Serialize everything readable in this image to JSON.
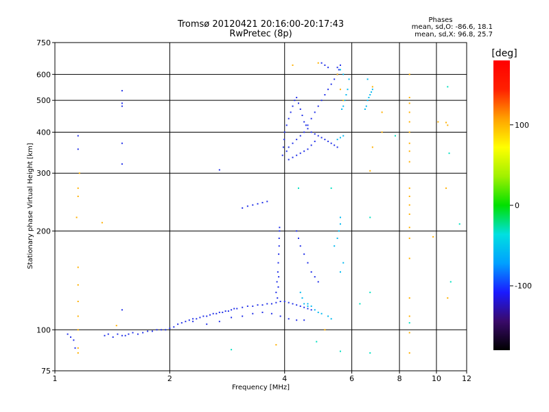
{
  "chart_data": {
    "type": "scatter",
    "title": "Tromsø 20120421 20:16:00-20:17:43",
    "subtitle": "RwPretec (8p)",
    "phases_box": {
      "heading": "Phases",
      "line1": "mean, sd,O: -86.6, 18.1",
      "line2": "mean, sd,X:  96.8, 25.7"
    },
    "xlabel": "Frequency [MHz]",
    "ylabel": "Stationary phase Virtual Height [km]",
    "x_scale": "log",
    "y_scale": "log",
    "xlim": [
      1,
      12
    ],
    "ylim": [
      75,
      750
    ],
    "x_ticks": [
      1,
      2,
      4,
      6,
      8,
      10,
      12
    ],
    "x_tick_labels": [
      "1",
      "2",
      "4",
      "6",
      "8",
      "10",
      "12"
    ],
    "y_ticks": [
      75,
      100,
      200,
      300,
      400,
      500,
      600,
      750
    ],
    "y_tick_labels": [
      "75",
      "100",
      "200",
      "300",
      "400",
      "500",
      "600",
      "750"
    ],
    "grid": true,
    "colorbar": {
      "label": "[deg]",
      "range": [
        -180,
        180
      ],
      "ticks": [
        -100,
        0,
        100
      ],
      "tick_labels": [
        "-100",
        "0",
        "100"
      ],
      "colors": [
        "#000000",
        "#3a0a6a",
        "#1a1aff",
        "#00a0ff",
        "#00e0e0",
        "#00e000",
        "#a0f000",
        "#ffff00",
        "#ffa000",
        "#ff2000",
        "#ff0000"
      ]
    },
    "series": [
      {
        "points": [
          [
            1.08,
            97
          ],
          [
            1.1,
            95
          ],
          [
            1.12,
            93
          ],
          [
            1.13,
            88
          ],
          [
            1.35,
            96
          ],
          [
            1.38,
            97
          ],
          [
            1.42,
            95
          ],
          [
            1.46,
            97
          ],
          [
            1.5,
            96
          ],
          [
            1.53,
            96
          ],
          [
            1.56,
            97
          ],
          [
            1.6,
            98
          ],
          [
            1.65,
            97
          ],
          [
            1.7,
            98
          ],
          [
            1.75,
            99
          ],
          [
            1.8,
            99
          ],
          [
            1.85,
            100
          ],
          [
            1.9,
            100
          ],
          [
            1.95,
            100
          ],
          [
            2.0,
            101
          ],
          [
            2.05,
            102
          ],
          [
            2.1,
            104
          ],
          [
            2.15,
            105
          ],
          [
            2.2,
            106
          ],
          [
            2.25,
            107
          ],
          [
            2.3,
            108
          ],
          [
            2.35,
            108
          ],
          [
            2.4,
            109
          ],
          [
            2.45,
            110
          ],
          [
            2.5,
            110
          ],
          [
            2.55,
            111
          ],
          [
            2.6,
            112
          ],
          [
            2.65,
            112
          ],
          [
            2.7,
            113
          ],
          [
            2.75,
            113
          ],
          [
            2.8,
            114
          ],
          [
            2.85,
            114
          ],
          [
            2.9,
            115
          ],
          [
            2.95,
            116
          ],
          [
            3.0,
            116
          ],
          [
            3.1,
            117
          ],
          [
            3.2,
            118
          ],
          [
            3.3,
            118
          ],
          [
            3.4,
            119
          ],
          [
            3.5,
            119
          ],
          [
            3.6,
            120
          ],
          [
            3.7,
            120
          ],
          [
            3.8,
            121
          ],
          [
            3.9,
            122
          ],
          [
            4.0,
            122
          ],
          [
            4.1,
            121
          ],
          [
            4.2,
            120
          ],
          [
            4.3,
            119
          ],
          [
            4.4,
            118
          ],
          [
            4.5,
            117
          ],
          [
            4.6,
            116
          ],
          [
            4.7,
            115
          ],
          [
            2.3,
            106
          ],
          [
            2.5,
            104
          ],
          [
            2.7,
            106
          ],
          [
            2.9,
            109
          ],
          [
            3.1,
            110
          ],
          [
            3.3,
            112
          ],
          [
            3.5,
            113
          ],
          [
            3.7,
            112
          ],
          [
            3.9,
            110
          ],
          [
            4.1,
            108
          ],
          [
            4.3,
            107
          ],
          [
            4.5,
            107
          ],
          [
            3.8,
            130
          ],
          [
            3.82,
            140
          ],
          [
            3.84,
            150
          ],
          [
            3.85,
            160
          ],
          [
            3.86,
            170
          ],
          [
            3.87,
            180
          ],
          [
            3.87,
            190
          ],
          [
            3.88,
            200
          ],
          [
            3.88,
            205
          ],
          [
            3.86,
            145
          ],
          [
            3.85,
            135
          ],
          [
            3.83,
            125
          ],
          [
            3.1,
            235
          ],
          [
            3.2,
            238
          ],
          [
            3.3,
            240
          ],
          [
            3.4,
            242
          ],
          [
            3.5,
            244
          ],
          [
            3.6,
            246
          ],
          [
            3.95,
            340
          ],
          [
            3.97,
            360
          ],
          [
            3.99,
            380
          ],
          [
            4.0,
            400
          ],
          [
            4.05,
            420
          ],
          [
            4.1,
            440
          ],
          [
            4.15,
            460
          ],
          [
            4.2,
            480
          ],
          [
            4.25,
            500
          ],
          [
            4.3,
            510
          ],
          [
            4.35,
            490
          ],
          [
            4.4,
            470
          ],
          [
            4.45,
            450
          ],
          [
            4.5,
            430
          ],
          [
            4.55,
            420
          ],
          [
            4.6,
            410
          ],
          [
            4.7,
            400
          ],
          [
            4.8,
            395
          ],
          [
            4.9,
            390
          ],
          [
            5.0,
            385
          ],
          [
            5.1,
            380
          ],
          [
            5.2,
            375
          ],
          [
            5.3,
            370
          ],
          [
            5.4,
            365
          ],
          [
            5.5,
            360
          ],
          [
            4.05,
            350
          ],
          [
            4.1,
            360
          ],
          [
            4.2,
            370
          ],
          [
            4.3,
            380
          ],
          [
            4.4,
            390
          ],
          [
            4.5,
            400
          ],
          [
            4.6,
            420
          ],
          [
            4.7,
            440
          ],
          [
            4.8,
            460
          ],
          [
            4.9,
            480
          ],
          [
            5.0,
            500
          ],
          [
            5.1,
            520
          ],
          [
            5.2,
            540
          ],
          [
            5.3,
            560
          ],
          [
            5.4,
            580
          ],
          [
            5.5,
            600
          ],
          [
            5.55,
            620
          ],
          [
            5.6,
            640
          ],
          [
            5.0,
            650
          ],
          [
            5.1,
            640
          ],
          [
            5.2,
            630
          ],
          [
            4.1,
            330
          ],
          [
            4.2,
            335
          ],
          [
            4.3,
            340
          ],
          [
            4.4,
            345
          ],
          [
            4.5,
            350
          ],
          [
            4.6,
            355
          ],
          [
            4.7,
            365
          ],
          [
            4.8,
            375
          ],
          [
            1.15,
            390
          ],
          [
            1.15,
            355
          ],
          [
            1.5,
            535
          ],
          [
            1.5,
            490
          ],
          [
            1.5,
            480
          ],
          [
            1.5,
            370
          ],
          [
            1.5,
            320
          ],
          [
            1.5,
            115
          ],
          [
            2.7,
            307
          ],
          [
            5.5,
            630
          ],
          [
            4.3,
            200
          ],
          [
            4.35,
            190
          ],
          [
            4.4,
            180
          ],
          [
            4.5,
            170
          ],
          [
            4.6,
            160
          ],
          [
            4.7,
            150
          ],
          [
            4.8,
            145
          ],
          [
            4.9,
            140
          ]
        ]
      },
      {
        "points": [
          [
            4.6,
            120
          ],
          [
            4.7,
            118
          ],
          [
            4.8,
            115
          ],
          [
            4.9,
            113
          ],
          [
            5.0,
            112
          ],
          [
            5.2,
            110
          ],
          [
            5.3,
            108
          ],
          [
            5.4,
            180
          ],
          [
            5.5,
            190
          ],
          [
            5.55,
            200
          ],
          [
            5.6,
            210
          ],
          [
            5.6,
            220
          ],
          [
            5.5,
            380
          ],
          [
            5.6,
            385
          ],
          [
            5.7,
            390
          ],
          [
            5.65,
            470
          ],
          [
            5.7,
            480
          ],
          [
            5.75,
            500
          ],
          [
            5.8,
            520
          ],
          [
            5.85,
            540
          ],
          [
            5.9,
            580
          ],
          [
            5.7,
            600
          ],
          [
            5.6,
            620
          ],
          [
            6.5,
            470
          ],
          [
            6.55,
            480
          ],
          [
            6.6,
            500
          ],
          [
            6.65,
            510
          ],
          [
            6.7,
            520
          ],
          [
            6.75,
            530
          ],
          [
            6.8,
            540
          ],
          [
            6.6,
            580
          ],
          [
            4.4,
            130
          ],
          [
            4.45,
            125
          ],
          [
            4.5,
            120
          ],
          [
            4.6,
            118
          ],
          [
            5.6,
            150
          ],
          [
            5.7,
            160
          ]
        ]
      },
      {
        "points": [
          [
            1.16,
            300
          ],
          [
            1.15,
            270
          ],
          [
            1.15,
            255
          ],
          [
            1.14,
            220
          ],
          [
            1.15,
            155
          ],
          [
            1.15,
            137
          ],
          [
            1.15,
            122
          ],
          [
            1.15,
            110
          ],
          [
            1.15,
            100
          ],
          [
            1.15,
            88
          ],
          [
            1.15,
            85
          ],
          [
            1.33,
            212
          ],
          [
            4.2,
            640
          ],
          [
            4.9,
            650
          ],
          [
            5.5,
            600
          ],
          [
            5.6,
            540
          ],
          [
            5.7,
            500
          ],
          [
            7.2,
            460
          ],
          [
            7.2,
            400
          ],
          [
            6.7,
            305
          ],
          [
            8.5,
            600
          ],
          [
            8.5,
            510
          ],
          [
            8.5,
            490
          ],
          [
            8.5,
            460
          ],
          [
            8.5,
            430
          ],
          [
            8.5,
            400
          ],
          [
            8.5,
            370
          ],
          [
            8.5,
            350
          ],
          [
            8.5,
            325
          ],
          [
            8.5,
            270
          ],
          [
            8.5,
            255
          ],
          [
            8.5,
            240
          ],
          [
            8.5,
            225
          ],
          [
            8.5,
            205
          ],
          [
            8.5,
            190
          ],
          [
            8.5,
            165
          ],
          [
            8.5,
            125
          ],
          [
            8.5,
            110
          ],
          [
            8.5,
            98
          ],
          [
            8.5,
            85
          ],
          [
            10.1,
            430
          ],
          [
            10.6,
            428
          ],
          [
            10.7,
            420
          ],
          [
            10.6,
            270
          ],
          [
            10.7,
            125
          ],
          [
            9.8,
            192
          ],
          [
            6.8,
            550
          ],
          [
            6.8,
            360
          ],
          [
            3.8,
            90
          ],
          [
            5.1,
            100
          ],
          [
            1.45,
            103
          ]
        ]
      },
      {
        "points": [
          [
            4.35,
            270
          ],
          [
            5.3,
            270
          ],
          [
            6.7,
            220
          ],
          [
            6.7,
            130
          ],
          [
            6.7,
            85
          ],
          [
            10.7,
            550
          ],
          [
            10.8,
            345
          ],
          [
            11.5,
            210
          ],
          [
            10.9,
            140
          ],
          [
            8.5,
            105
          ],
          [
            6.3,
            120
          ],
          [
            7.8,
            390
          ],
          [
            4.85,
            92
          ],
          [
            5.6,
            86
          ],
          [
            2.9,
            87
          ]
        ]
      }
    ]
  }
}
